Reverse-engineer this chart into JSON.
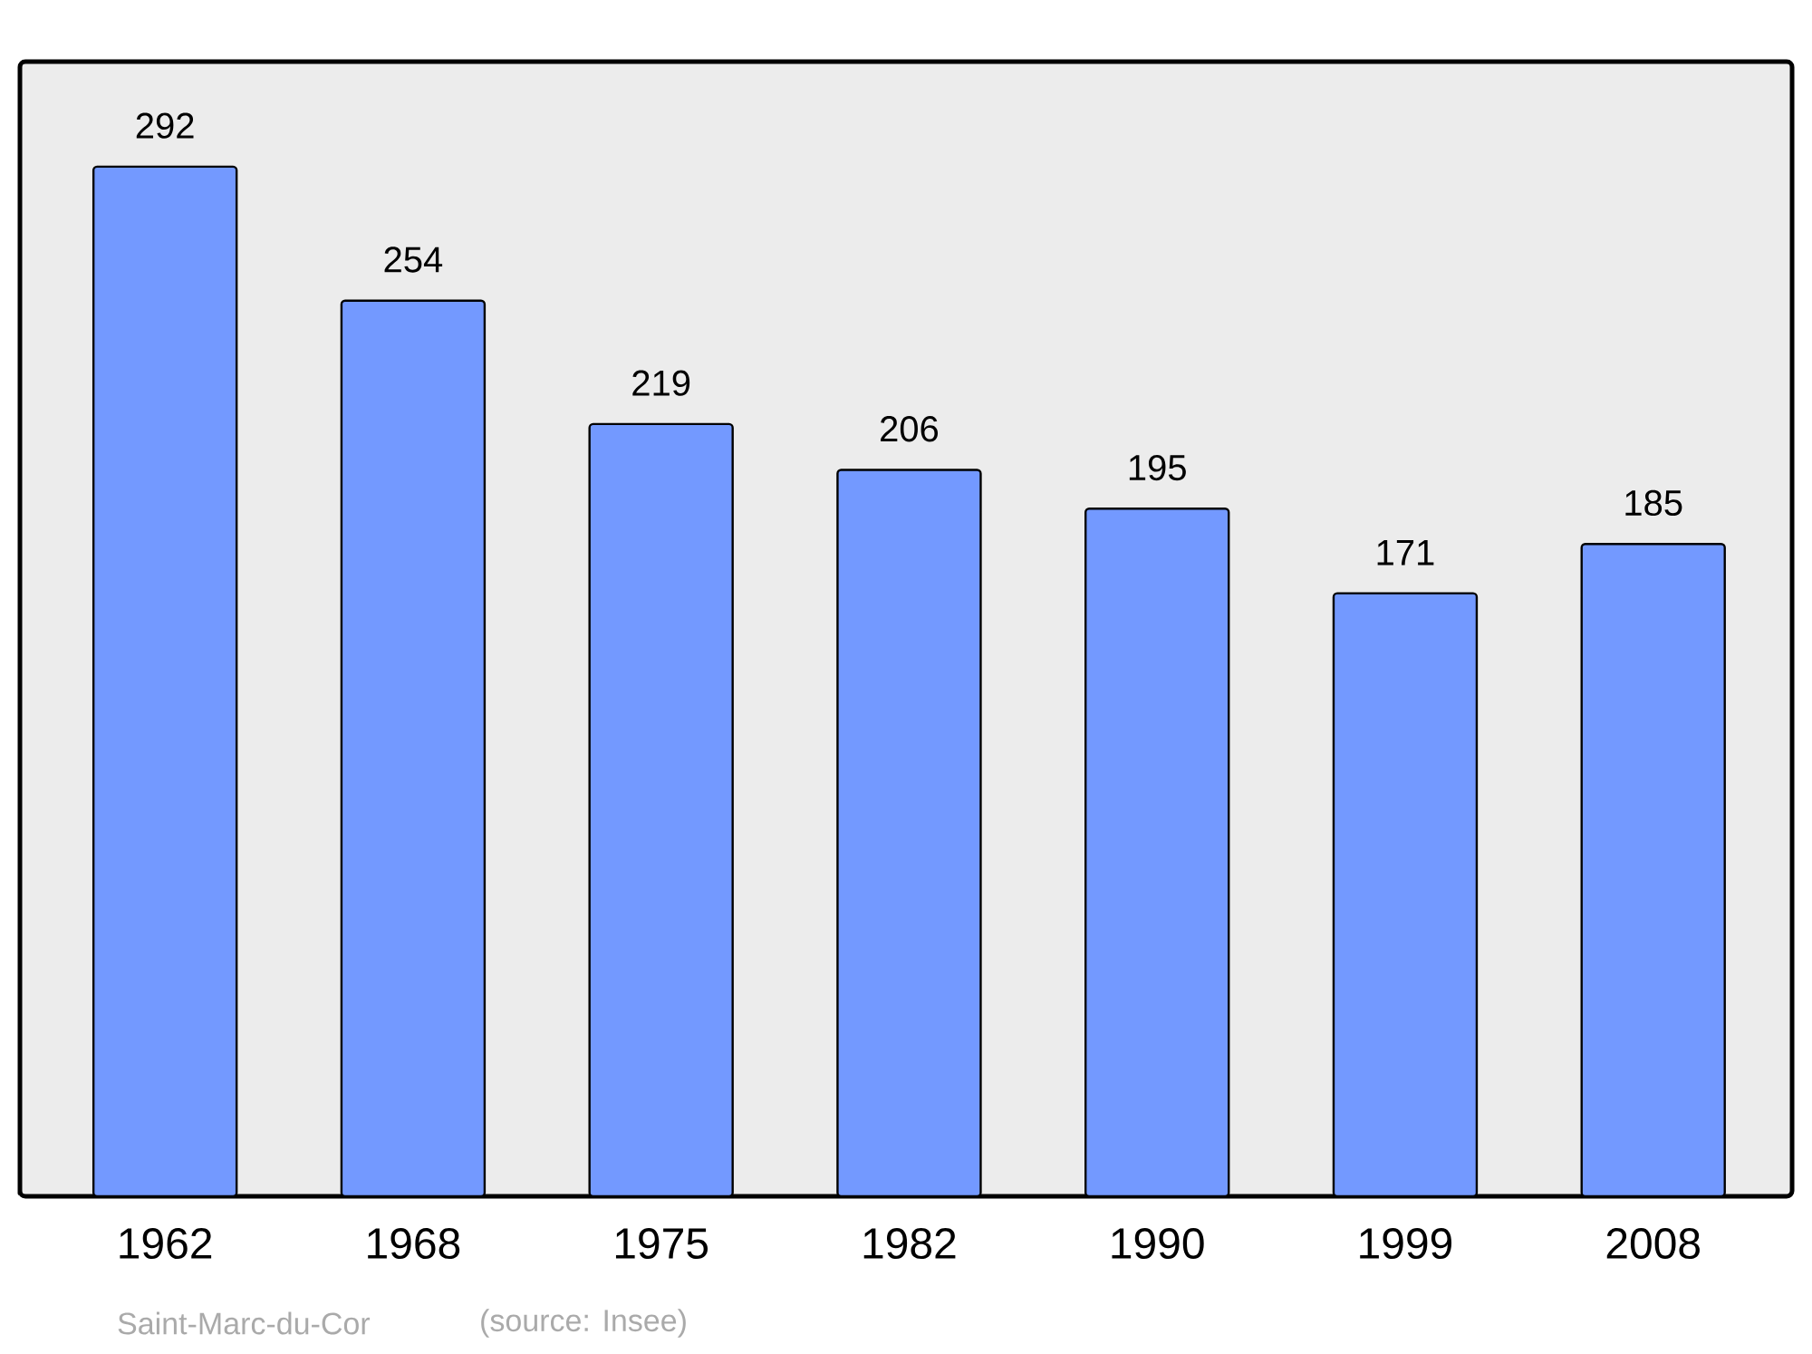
{
  "chart_data": {
    "type": "bar",
    "categories": [
      "1962",
      "1968",
      "1975",
      "1982",
      "1990",
      "1999",
      "2008"
    ],
    "values": [
      292,
      254,
      219,
      206,
      195,
      171,
      185
    ],
    "color": "#7399ff",
    "data_labels": true,
    "annotations": [
      "Saint-Marc-du-Cor",
      "(source: Insee)"
    ]
  }
}
